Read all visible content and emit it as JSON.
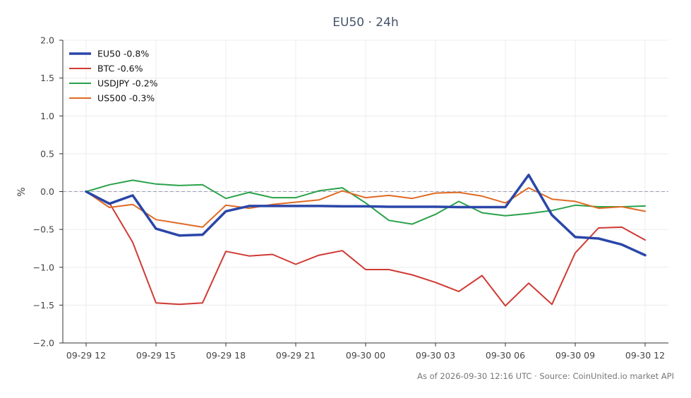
{
  "chart_data": {
    "type": "line",
    "title": "EU50 · 24h",
    "xlabel": "",
    "ylabel": "%",
    "ylim": [
      -2.0,
      2.0
    ],
    "xlim": [
      "2026-09-29 11:00",
      "2026-09-30 13:00"
    ],
    "yticks": [
      "2.0",
      "1.5",
      "1.0",
      "0.5",
      "0.0",
      "−0.5",
      "−1.0",
      "−1.5",
      "−2.0"
    ],
    "xticks": [
      {
        "label": "09-29 12",
        "at": "2026-09-29 12:00"
      },
      {
        "label": "09-29 15",
        "at": "2026-09-29 15:00"
      },
      {
        "label": "09-29 18",
        "at": "2026-09-29 18:00"
      },
      {
        "label": "09-29 21",
        "at": "2026-09-29 21:00"
      },
      {
        "label": "09-30 00",
        "at": "2026-09-30 00:00"
      },
      {
        "label": "09-30 03",
        "at": "2026-09-30 03:00"
      },
      {
        "label": "09-30 06",
        "at": "2026-09-30 06:00"
      },
      {
        "label": "09-30 09",
        "at": "2026-09-30 09:00"
      },
      {
        "label": "09-30 12",
        "at": "2026-09-30 12:00"
      }
    ],
    "x": [
      "2026-09-29 12:00",
      "2026-09-29 13:00",
      "2026-09-29 14:00",
      "2026-09-29 15:00",
      "2026-09-29 16:00",
      "2026-09-29 17:00",
      "2026-09-29 18:00",
      "2026-09-29 19:00",
      "2026-09-29 20:00",
      "2026-09-29 21:00",
      "2026-09-29 22:00",
      "2026-09-29 23:00",
      "2026-09-30 00:00",
      "2026-09-30 01:00",
      "2026-09-30 02:00",
      "2026-09-30 03:00",
      "2026-09-30 04:00",
      "2026-09-30 05:00",
      "2026-09-30 06:00",
      "2026-09-30 07:00",
      "2026-09-30 08:00",
      "2026-09-30 09:00",
      "2026-09-30 10:00",
      "2026-09-30 11:00",
      "2026-09-30 12:00"
    ],
    "reference_line": 0.0,
    "grid": true,
    "legend_position": "top-left",
    "series": [
      {
        "name": "EU50 -0.8%",
        "color": "#2a46a8",
        "width": 3.5,
        "values": [
          0.0,
          -0.16,
          -0.05,
          -0.49,
          -0.58,
          -0.57,
          -0.26,
          -0.19,
          -0.19,
          -0.19,
          -0.19,
          -0.195,
          -0.195,
          -0.2,
          -0.2,
          -0.2,
          -0.205,
          -0.205,
          -0.205,
          0.22,
          -0.31,
          -0.6,
          -0.62,
          -0.7,
          -0.84
        ]
      },
      {
        "name": "BTC -0.6%",
        "color": "#d03a34",
        "width": 2,
        "values": [
          0.0,
          -0.15,
          -0.67,
          -1.47,
          -1.49,
          -1.47,
          -0.79,
          -0.85,
          -0.83,
          -0.96,
          -0.84,
          -0.78,
          -1.03,
          -1.03,
          -1.1,
          -1.2,
          -1.32,
          -1.11,
          -1.51,
          -1.21,
          -1.49,
          -0.81,
          -0.48,
          -0.47,
          -0.64
        ]
      },
      {
        "name": "USDJPY -0.2%",
        "color": "#2aa14a",
        "width": 2,
        "values": [
          0.0,
          0.09,
          0.15,
          0.1,
          0.08,
          0.09,
          -0.09,
          -0.01,
          -0.08,
          -0.08,
          0.01,
          0.05,
          -0.15,
          -0.38,
          -0.43,
          -0.3,
          -0.13,
          -0.28,
          -0.32,
          -0.29,
          -0.25,
          -0.18,
          -0.2,
          -0.2,
          -0.19
        ]
      },
      {
        "name": "US500 -0.3%",
        "color": "#e06a24",
        "width": 2,
        "values": [
          0.0,
          -0.21,
          -0.17,
          -0.37,
          -0.42,
          -0.47,
          -0.18,
          -0.22,
          -0.17,
          -0.14,
          -0.11,
          0.01,
          -0.08,
          -0.05,
          -0.09,
          -0.02,
          -0.01,
          -0.06,
          -0.15,
          0.05,
          -0.1,
          -0.13,
          -0.22,
          -0.2,
          -0.26
        ]
      }
    ]
  },
  "footer": {
    "source": "As of 2026-09-30 12:16 UTC · Source: CoinUnited.io market API"
  }
}
